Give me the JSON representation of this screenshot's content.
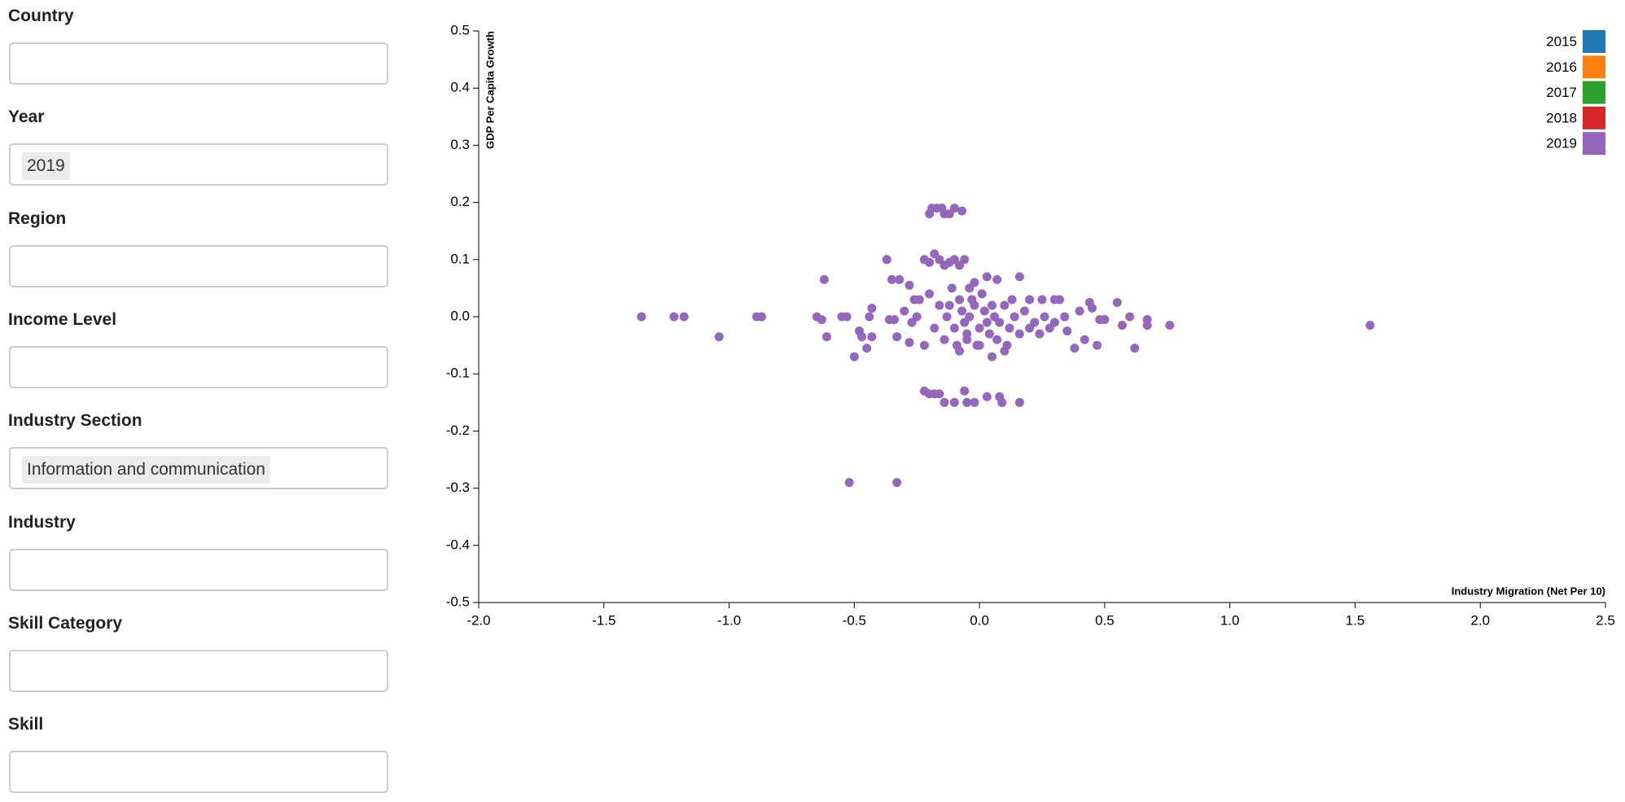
{
  "filters": [
    {
      "label": "Country"
    },
    {
      "label": "Year",
      "value": "2019"
    },
    {
      "label": "Region"
    },
    {
      "label": "Income Level"
    },
    {
      "label": "Industry Section",
      "value": "Information and communication"
    },
    {
      "label": "Industry"
    },
    {
      "label": "Skill Category"
    },
    {
      "label": "Skill"
    }
  ],
  "chart_data": {
    "type": "scatter",
    "x_label": "Industry Migration (Net Per 10)",
    "y_label": "GDP Per Capita Growth",
    "xlim": [
      -2.0,
      2.5
    ],
    "ylim": [
      -0.5,
      0.5
    ],
    "xticks": [
      {
        "value": -2,
        "label": "-2.0"
      },
      -1.5,
      {
        "value": -1,
        "label": "-1.0"
      },
      -0.5,
      {
        "value": 0,
        "label": "0.0"
      },
      0.5,
      {
        "value": 1,
        "label": "1.0"
      },
      1.5,
      {
        "value": 2,
        "label": "2.0"
      },
      2.5
    ],
    "yticks": [
      0.5,
      0.4,
      0.3,
      0.2,
      0.1,
      {
        "value": 0,
        "label": "0.0"
      },
      -0.1,
      -0.2,
      -0.3,
      -0.4,
      -0.5
    ],
    "legend_position": "top-right",
    "series": [
      {
        "name": "2015",
        "color": "#1f77b4"
      },
      {
        "name": "2016",
        "color": "#ff7f0e"
      },
      {
        "name": "2017",
        "color": "#2ca02c"
      },
      {
        "name": "2018",
        "color": "#d62728"
      },
      {
        "name": "2019",
        "color": "#9467bd",
        "x": [
          -1.35,
          -1.22,
          -1.18,
          -1.04,
          -0.89,
          -0.87,
          -0.65,
          -0.63,
          -0.62,
          -0.61,
          -0.55,
          -0.53,
          -0.52,
          -0.33,
          -0.5,
          -0.48,
          -0.47,
          -0.45,
          -0.43,
          -0.44,
          -0.43,
          -0.37,
          -0.35,
          -0.32,
          -0.28,
          -0.36,
          -0.34,
          -0.33,
          -0.3,
          -0.28,
          -0.26,
          -0.24,
          -0.22,
          -0.2,
          -0.18,
          -0.16,
          -0.14,
          -0.12,
          -0.1,
          -0.08,
          -0.06,
          -0.2,
          -0.19,
          -0.17,
          -0.15,
          -0.14,
          -0.12,
          -0.1,
          -0.07,
          -0.22,
          -0.2,
          -0.18,
          -0.16,
          -0.14,
          -0.1,
          -0.06,
          -0.05,
          -0.02,
          0.03,
          0.08,
          0.09,
          0.16,
          0.2,
          0.25,
          0.3,
          0.32,
          0.4,
          0.44,
          0.45,
          0.48,
          0.5,
          0.55,
          0.57,
          0.6,
          0.62,
          0.67,
          0.67,
          0.76,
          1.56,
          0.42,
          0.47,
          0.38,
          0.35,
          0.28,
          0.22,
          0.18,
          0.16,
          0.1,
          0.05,
          0.0,
          -0.05,
          -0.08,
          -0.02,
          0.03,
          0.07,
          -0.04,
          -0.12,
          -0.1,
          -0.08,
          -0.06,
          -0.04,
          -0.02,
          0.0,
          0.02,
          0.04,
          0.06,
          0.08,
          0.1,
          0.12,
          0.14,
          -0.14,
          -0.05,
          0.01,
          -0.03,
          -0.07,
          0.03,
          0.05,
          -0.01,
          -0.09,
          0.07,
          -0.11,
          -0.13,
          0.11,
          0.13,
          -0.16,
          0.16,
          0.2,
          0.24,
          0.26,
          0.3,
          0.34,
          -0.18,
          -0.2,
          -0.22,
          -0.25,
          -0.27
        ],
        "y": [
          0.0,
          0.0,
          0.0,
          -0.035,
          0.0,
          0.0,
          0.0,
          -0.005,
          0.065,
          -0.035,
          0.0,
          0.0,
          -0.29,
          -0.29,
          -0.07,
          -0.025,
          -0.035,
          -0.055,
          0.015,
          0.0,
          -0.035,
          0.1,
          0.065,
          0.065,
          0.055,
          -0.005,
          -0.005,
          -0.035,
          0.01,
          -0.045,
          0.03,
          0.03,
          0.1,
          0.095,
          0.11,
          0.1,
          0.09,
          0.095,
          0.1,
          0.09,
          0.1,
          0.18,
          0.19,
          0.19,
          0.19,
          0.18,
          0.18,
          0.19,
          0.185,
          -0.13,
          -0.135,
          -0.135,
          -0.135,
          -0.15,
          -0.15,
          -0.13,
          -0.15,
          -0.15,
          -0.14,
          -0.14,
          -0.15,
          -0.15,
          0.03,
          0.03,
          0.03,
          0.03,
          0.01,
          0.025,
          0.015,
          -0.005,
          -0.005,
          0.025,
          -0.015,
          0.0,
          -0.055,
          -0.005,
          -0.015,
          -0.015,
          -0.015,
          -0.04,
          -0.05,
          -0.055,
          -0.025,
          -0.02,
          -0.01,
          0.01,
          0.07,
          -0.06,
          -0.07,
          -0.05,
          -0.04,
          -0.06,
          0.06,
          0.07,
          0.065,
          0.05,
          0.02,
          -0.02,
          0.03,
          -0.01,
          0.0,
          0.02,
          -0.02,
          0.01,
          -0.03,
          0.0,
          -0.01,
          0.02,
          -0.02,
          0.0,
          -0.04,
          -0.03,
          0.04,
          0.03,
          0.01,
          -0.01,
          0.02,
          -0.05,
          -0.05,
          -0.04,
          0.05,
          0.0,
          -0.05,
          0.03,
          0.02,
          -0.03,
          -0.02,
          -0.03,
          0.0,
          -0.01,
          0.0,
          -0.02,
          0.04,
          -0.05,
          0.0,
          -0.01
        ]
      }
    ]
  }
}
